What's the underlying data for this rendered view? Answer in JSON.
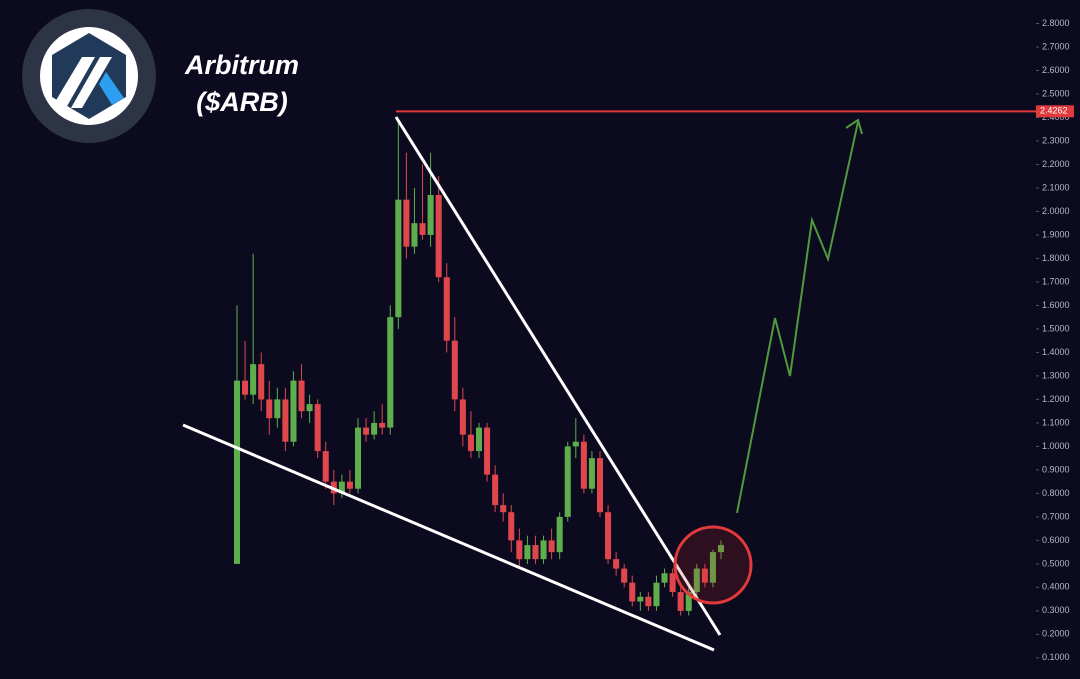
{
  "chart_data": {
    "type": "candlestick",
    "title": "Arbitrum",
    "subtitle": "($ARB)",
    "open": [
      0.5,
      1.28,
      1.22,
      1.35,
      1.2,
      1.12,
      1.2,
      1.02,
      1.28,
      1.15,
      1.18,
      0.98,
      0.85,
      0.8,
      0.85,
      0.82,
      1.08,
      1.05,
      1.1,
      1.08,
      1.55,
      2.05,
      1.85,
      1.95,
      1.9,
      2.07,
      1.72,
      1.45,
      1.2,
      1.05,
      0.98,
      1.08,
      0.88,
      0.75,
      0.72,
      0.6,
      0.52,
      0.58,
      0.52,
      0.6,
      0.55,
      0.7,
      1.0,
      1.02,
      0.82,
      0.95,
      0.72,
      0.52,
      0.48,
      0.42,
      0.34,
      0.36,
      0.32,
      0.42,
      0.46,
      0.38,
      0.3,
      0.38,
      0.48,
      0.42,
      0.55
    ],
    "high": [
      1.6,
      1.45,
      1.82,
      1.4,
      1.28,
      1.25,
      1.25,
      1.32,
      1.35,
      1.22,
      1.2,
      1.02,
      0.9,
      0.88,
      0.9,
      1.12,
      1.12,
      1.15,
      1.18,
      1.6,
      2.38,
      2.25,
      2.1,
      2.2,
      2.25,
      2.15,
      1.78,
      1.55,
      1.25,
      1.15,
      1.1,
      1.1,
      0.92,
      0.8,
      0.75,
      0.65,
      0.62,
      0.62,
      0.62,
      0.65,
      0.72,
      1.02,
      1.12,
      1.05,
      0.98,
      0.98,
      0.75,
      0.55,
      0.5,
      0.45,
      0.38,
      0.38,
      0.45,
      0.48,
      0.48,
      0.4,
      0.4,
      0.5,
      0.5,
      0.56,
      0.6
    ],
    "low": [
      0.5,
      1.2,
      1.18,
      1.15,
      1.05,
      1.08,
      0.98,
      1.0,
      1.12,
      1.1,
      0.95,
      0.82,
      0.75,
      0.78,
      0.8,
      0.8,
      1.02,
      1.03,
      1.05,
      1.05,
      1.5,
      1.8,
      1.82,
      1.88,
      1.85,
      1.7,
      1.4,
      1.15,
      1.0,
      0.95,
      0.95,
      0.85,
      0.72,
      0.68,
      0.55,
      0.48,
      0.5,
      0.5,
      0.5,
      0.52,
      0.52,
      0.68,
      0.95,
      0.8,
      0.8,
      0.7,
      0.5,
      0.45,
      0.4,
      0.32,
      0.3,
      0.3,
      0.3,
      0.4,
      0.36,
      0.28,
      0.28,
      0.36,
      0.4,
      0.4,
      0.52
    ],
    "close": [
      1.28,
      1.22,
      1.35,
      1.2,
      1.12,
      1.2,
      1.02,
      1.28,
      1.15,
      1.18,
      0.98,
      0.85,
      0.8,
      0.85,
      0.82,
      1.08,
      1.05,
      1.1,
      1.08,
      1.55,
      2.05,
      1.85,
      1.95,
      1.9,
      2.07,
      1.72,
      1.45,
      1.2,
      1.05,
      0.98,
      1.08,
      0.88,
      0.75,
      0.72,
      0.6,
      0.52,
      0.58,
      0.52,
      0.6,
      0.55,
      0.7,
      1.0,
      1.02,
      0.82,
      0.95,
      0.72,
      0.52,
      0.48,
      0.42,
      0.34,
      0.36,
      0.32,
      0.42,
      0.46,
      0.38,
      0.3,
      0.38,
      0.48,
      0.42,
      0.55,
      0.58
    ],
    "up_color": "#5fae4e",
    "down_color": "#e0474c",
    "price_line": 2.4262,
    "price_line_color": "#e0393e",
    "ylim": [
      0.01,
      2.9
    ],
    "yticks": [
      {
        "value": 0.1,
        "label": "0.1000"
      },
      {
        "value": 0.2,
        "label": "0.2000"
      },
      {
        "value": 0.3,
        "label": "0.3000"
      },
      {
        "value": 0.4,
        "label": "0.4000"
      },
      {
        "value": 0.5,
        "label": "0.5000"
      },
      {
        "value": 0.6,
        "label": "0.6000"
      },
      {
        "value": 0.7,
        "label": "0.7000"
      },
      {
        "value": 0.8,
        "label": "0.8000"
      },
      {
        "value": 0.9,
        "label": "0.9000"
      },
      {
        "value": 1.0,
        "label": "1.0000"
      },
      {
        "value": 1.1,
        "label": "1.1000"
      },
      {
        "value": 1.2,
        "label": "1.2000"
      },
      {
        "value": 1.3,
        "label": "1.3000"
      },
      {
        "value": 1.4,
        "label": "1.4000"
      },
      {
        "value": 1.5,
        "label": "1.5000"
      },
      {
        "value": 1.6,
        "label": "1.6000"
      },
      {
        "value": 1.7,
        "label": "1.7000"
      },
      {
        "value": 1.8,
        "label": "1.8000"
      },
      {
        "value": 1.9,
        "label": "1.9000"
      },
      {
        "value": 2.0,
        "label": "2.0000"
      },
      {
        "value": 2.1,
        "label": "2.1000"
      },
      {
        "value": 2.2,
        "label": "2.2000"
      },
      {
        "value": 2.3,
        "label": "2.3000"
      },
      {
        "value": 2.4,
        "label": "2.4000"
      },
      {
        "value": 2.5,
        "label": "2.5000"
      },
      {
        "value": 2.6,
        "label": "2.6000"
      },
      {
        "value": 2.7,
        "label": "2.7000"
      },
      {
        "value": 2.8,
        "label": "2.8000"
      }
    ]
  }
}
